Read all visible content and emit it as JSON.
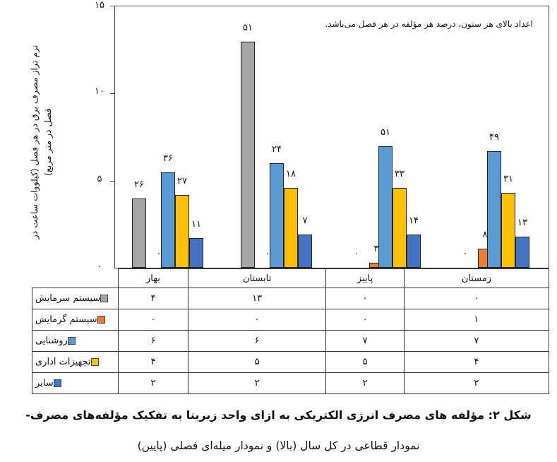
{
  "chart_data": {
    "type": "bar",
    "title": "شکل ۲: مؤلفه های مصرف انرژی الکتریکی به ازای واحد زیربنا به تفکیک مؤلفه‌های مصرف- نمودار قطاعی در کل سال (بالا) و نمودار میله‌ای فصلی (پایین)",
    "annotation": "اعداد بالای هر ستون، درصد هر مؤلفه در هر فصل می‌باشد.",
    "xlabel": "",
    "ylabel": "نرم تراز مصرف برق در هر فصل (کیلووات ساعت در فصل در متر مربع)",
    "ylim": [
      0,
      15
    ],
    "yticks": [
      "۰",
      "۵",
      "۱۰",
      "۱۵"
    ],
    "grid": false,
    "legend_position": "data-table-left",
    "categories": [
      "بهار",
      "تابستان",
      "پاییز",
      "زمستان"
    ],
    "series": [
      {
        "name": "سیستم سرمایش",
        "color": "#a5a5a5",
        "values": [
          4,
          13,
          0,
          0
        ],
        "percent_labels": [
          "۲۶",
          "۵۱",
          "۰",
          "۰"
        ]
      },
      {
        "name": "سیستم گرمایش",
        "color": "#ed7d31",
        "values": [
          0,
          0,
          0.3,
          1.1
        ],
        "percent_labels": [
          "۰",
          "۰",
          "۳",
          "۸"
        ]
      },
      {
        "name": "روشنایی",
        "color": "#5b9bd5",
        "values": [
          5.5,
          6,
          7,
          6.7
        ],
        "percent_labels": [
          "۳۶",
          "۲۴",
          "۵۱",
          "۴۹"
        ]
      },
      {
        "name": "تجهیزات اداری",
        "color": "#ffc000",
        "values": [
          4.2,
          4.6,
          4.6,
          4.3
        ],
        "percent_labels": [
          "۲۷",
          "۱۸",
          "۳۳",
          "۳۱"
        ]
      },
      {
        "name": "سایر",
        "color": "#4472c4",
        "values": [
          1.7,
          1.9,
          1.9,
          1.8
        ],
        "percent_labels": [
          "۱۱",
          "۷",
          "۱۴",
          "۱۳"
        ]
      }
    ],
    "table": {
      "rows": [
        {
          "label": "سیستم سرمایش",
          "cells": [
            "۴",
            "۱۳",
            "۰",
            "۰"
          ]
        },
        {
          "label": "سیستم گرمایش",
          "cells": [
            "۰",
            "۰",
            "۰",
            "۱"
          ]
        },
        {
          "label": "روشنایی",
          "cells": [
            "۶",
            "۶",
            "۷",
            "۷"
          ]
        },
        {
          "label": "تجهیزات اداری",
          "cells": [
            "۴",
            "۵",
            "۵",
            "۴"
          ]
        },
        {
          "label": "سایر",
          "cells": [
            "۲",
            "۲",
            "۲",
            "۲"
          ]
        }
      ]
    }
  },
  "caption": {
    "line1": "شکل ۲: مؤلفه های مصرف انرژی الکتریکی به ازای واحد زیربنا به تفکیک مؤلفه‌های مصرف-",
    "line2": "نمودار قطاعی در کل سال (بالا) و نمودار میله‌ای فصلی (پایین)"
  }
}
